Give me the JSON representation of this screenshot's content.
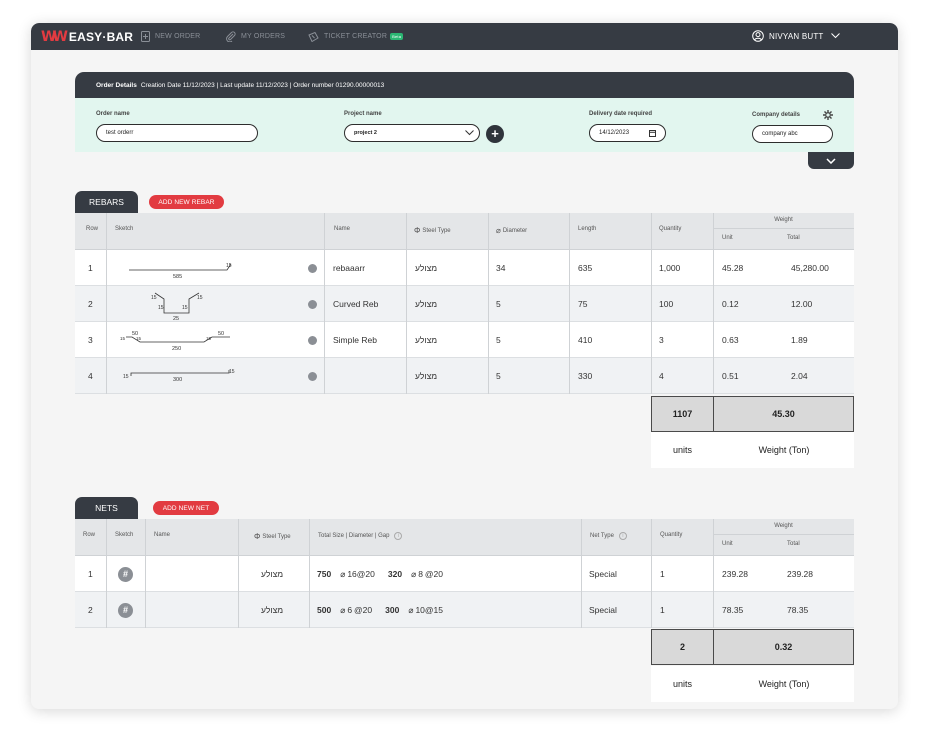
{
  "app": {
    "logo_text": "EASY·BAR"
  },
  "nav": {
    "new_order": "NEW ORDER",
    "my_orders": "MY ORDERS",
    "ticket_creator": "TICKET CREATOR",
    "ticket_badge": "Beta",
    "user_name": "NIVYAN BUTT"
  },
  "order": {
    "header_title": "Order Details",
    "header_info": "Creation Date 11/12/2023 | Last update 11/12/2023 | Order number 01290.00000013",
    "order_name_label": "Order name",
    "order_name_value": "test orderr",
    "project_name_label": "Project name",
    "project_name_value": "project 2",
    "delivery_label": "Delivery date required",
    "delivery_value": "14/12/2023",
    "company_label": "Company details",
    "company_value": "company abc"
  },
  "rebars": {
    "tab_label": "REBARS",
    "add_label": "ADD NEW REBAR",
    "headers": {
      "row": "Row",
      "sketch": "Sketch",
      "name": "Name",
      "steel_type": "Steel Type",
      "diameter": "Diameter",
      "length": "Length",
      "quantity": "Quantity",
      "weight": "Weight",
      "unit": "Unit",
      "total": "Total"
    },
    "rows": [
      {
        "row": "1",
        "name": "rebaaarr",
        "steel": "מצולע",
        "diameter": "34",
        "length": "635",
        "quantity": "1,000",
        "unit": "45.28",
        "total": "45,280.00",
        "sketch_labels": [
          "585",
          "15"
        ]
      },
      {
        "row": "2",
        "name": "Curved Reb",
        "steel": "מצולע",
        "diameter": "5",
        "length": "75",
        "quantity": "100",
        "unit": "0.12",
        "total": "12.00",
        "sketch_labels": [
          "15",
          "15",
          "15",
          "15",
          "25"
        ]
      },
      {
        "row": "3",
        "name": "Simple Reb",
        "steel": "מצולע",
        "diameter": "5",
        "length": "410",
        "quantity": "3",
        "unit": "0.63",
        "total": "1.89",
        "sketch_labels": [
          "50",
          "50",
          "15",
          "15",
          "15",
          "250"
        ]
      },
      {
        "row": "4",
        "name": "",
        "steel": "מצולע",
        "diameter": "5",
        "length": "330",
        "quantity": "4",
        "unit": "0.51",
        "total": "2.04",
        "sketch_labels": [
          "15",
          "300",
          "15"
        ]
      }
    ],
    "total_quantity": "1107",
    "total_weight": "45.30",
    "units_label": "units",
    "weight_label": "Weight (Ton)"
  },
  "nets": {
    "tab_label": "NETS",
    "add_label": "ADD NEW NET",
    "headers": {
      "row": "Row",
      "sketch": "Sketch",
      "name": "Name",
      "steel_type": "Steel Type",
      "total_size": "Total Size | Diameter | Gap",
      "net_type": "Net Type",
      "quantity": "Quantity",
      "weight": "Weight",
      "unit": "Unit",
      "total": "Total"
    },
    "rows": [
      {
        "row": "1",
        "name": "",
        "steel": "מצולע",
        "size1": "750",
        "diam1": "16",
        "gap1": "@20",
        "size2": "320",
        "diam2": "8",
        "gap2": "@20",
        "net_type": "Special",
        "quantity": "1",
        "unit": "239.28",
        "total": "239.28"
      },
      {
        "row": "2",
        "name": "",
        "steel": "מצולע",
        "size1": "500",
        "diam1": "6",
        "gap1": "@20",
        "size2": "300",
        "diam2": "10",
        "gap2": "@15",
        "net_type": "Special",
        "quantity": "1",
        "unit": "78.35",
        "total": "78.35"
      }
    ],
    "total_quantity": "2",
    "total_weight": "0.32",
    "units_label": "units",
    "weight_label": "Weight (Ton)"
  }
}
